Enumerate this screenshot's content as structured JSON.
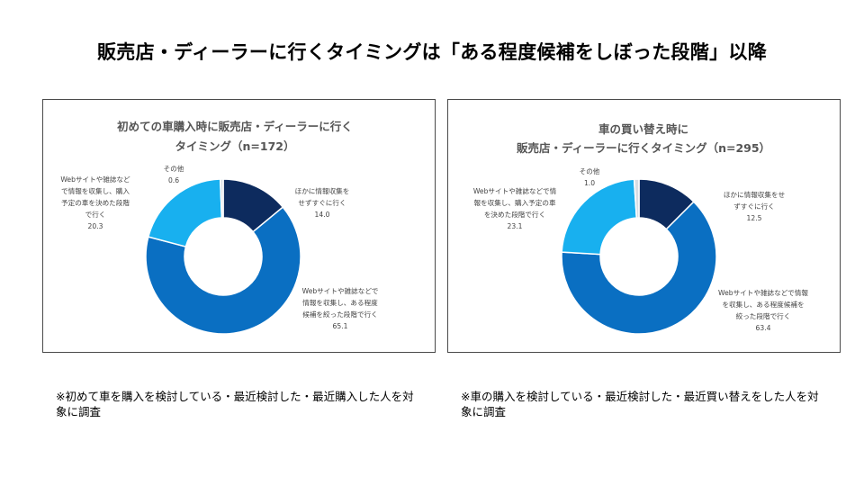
{
  "page": {
    "title": "販売店・ディーラーに行くタイミングは「ある程度候補をしぼった段階」以降"
  },
  "chart_data": [
    {
      "type": "pie",
      "variant": "donut",
      "title_lines": [
        "初めての車購入時に販売店・ディーラーに行く",
        "タイミング（n=172）"
      ],
      "series": [
        {
          "categories": [
            "ほかに情報収集をせずすぐに行く",
            "Webサイトや雑誌などで情報を収集し、ある程度候補を絞った段階で行く",
            "Webサイトや雑誌などで情報を収集し、購入予定の車を決めた段階で行く",
            "その他"
          ],
          "values": [
            14.0,
            65.1,
            20.3,
            0.6
          ]
        }
      ],
      "label_lines": [
        [
          "ほかに情報収集を",
          "せずすぐに行く",
          "14.0"
        ],
        [
          "Webサイトや雑誌などで",
          "情報を収集し、ある程度",
          "候補を絞った段階で行く",
          "65.1"
        ],
        [
          "Webサイトや雑誌など",
          "で情報を収集し、購入",
          "予定の車を決めた段階",
          "で行く",
          "20.3"
        ],
        [
          "その他",
          "0.6"
        ]
      ],
      "colors": [
        "#0d2b5e",
        "#0a6fc2",
        "#18b0ef",
        "#d7dde3"
      ]
    },
    {
      "type": "pie",
      "variant": "donut",
      "title_lines": [
        "車の買い替え時に",
        "販売店・ディーラーに行くタイミング（n=295）"
      ],
      "series": [
        {
          "categories": [
            "ほかに情報収集をせずすぐに行く",
            "Webサイトや雑誌などで情報を収集し、ある程度候補を絞った段階で行く",
            "Webサイトや雑誌などで情報を収集し、購入予定の車を決めた段階で行く",
            "その他"
          ],
          "values": [
            12.5,
            63.4,
            23.1,
            1.0
          ]
        }
      ],
      "label_lines": [
        [
          "ほかに情報収集をせ",
          "ずすぐに行く",
          "12.5"
        ],
        [
          "Webサイトや雑誌などで情報",
          "を収集し、ある程度候補を",
          "絞った段階で行く",
          "63.4"
        ],
        [
          "Webサイトや雑誌などで情",
          "報を収集し、購入予定の車",
          "を決めた段階で行く",
          "23.1"
        ],
        [
          "その他",
          "1.0"
        ]
      ],
      "colors": [
        "#0d2b5e",
        "#0a6fc2",
        "#18b0ef",
        "#d7dde3"
      ]
    }
  ],
  "notes": {
    "left": "※初めて車を購入を検討している・最近検討した・最近購入した人を対象に調査",
    "right": "※車の購入を検討している・最近検討した・最近買い替えをした人を対象に調査"
  }
}
